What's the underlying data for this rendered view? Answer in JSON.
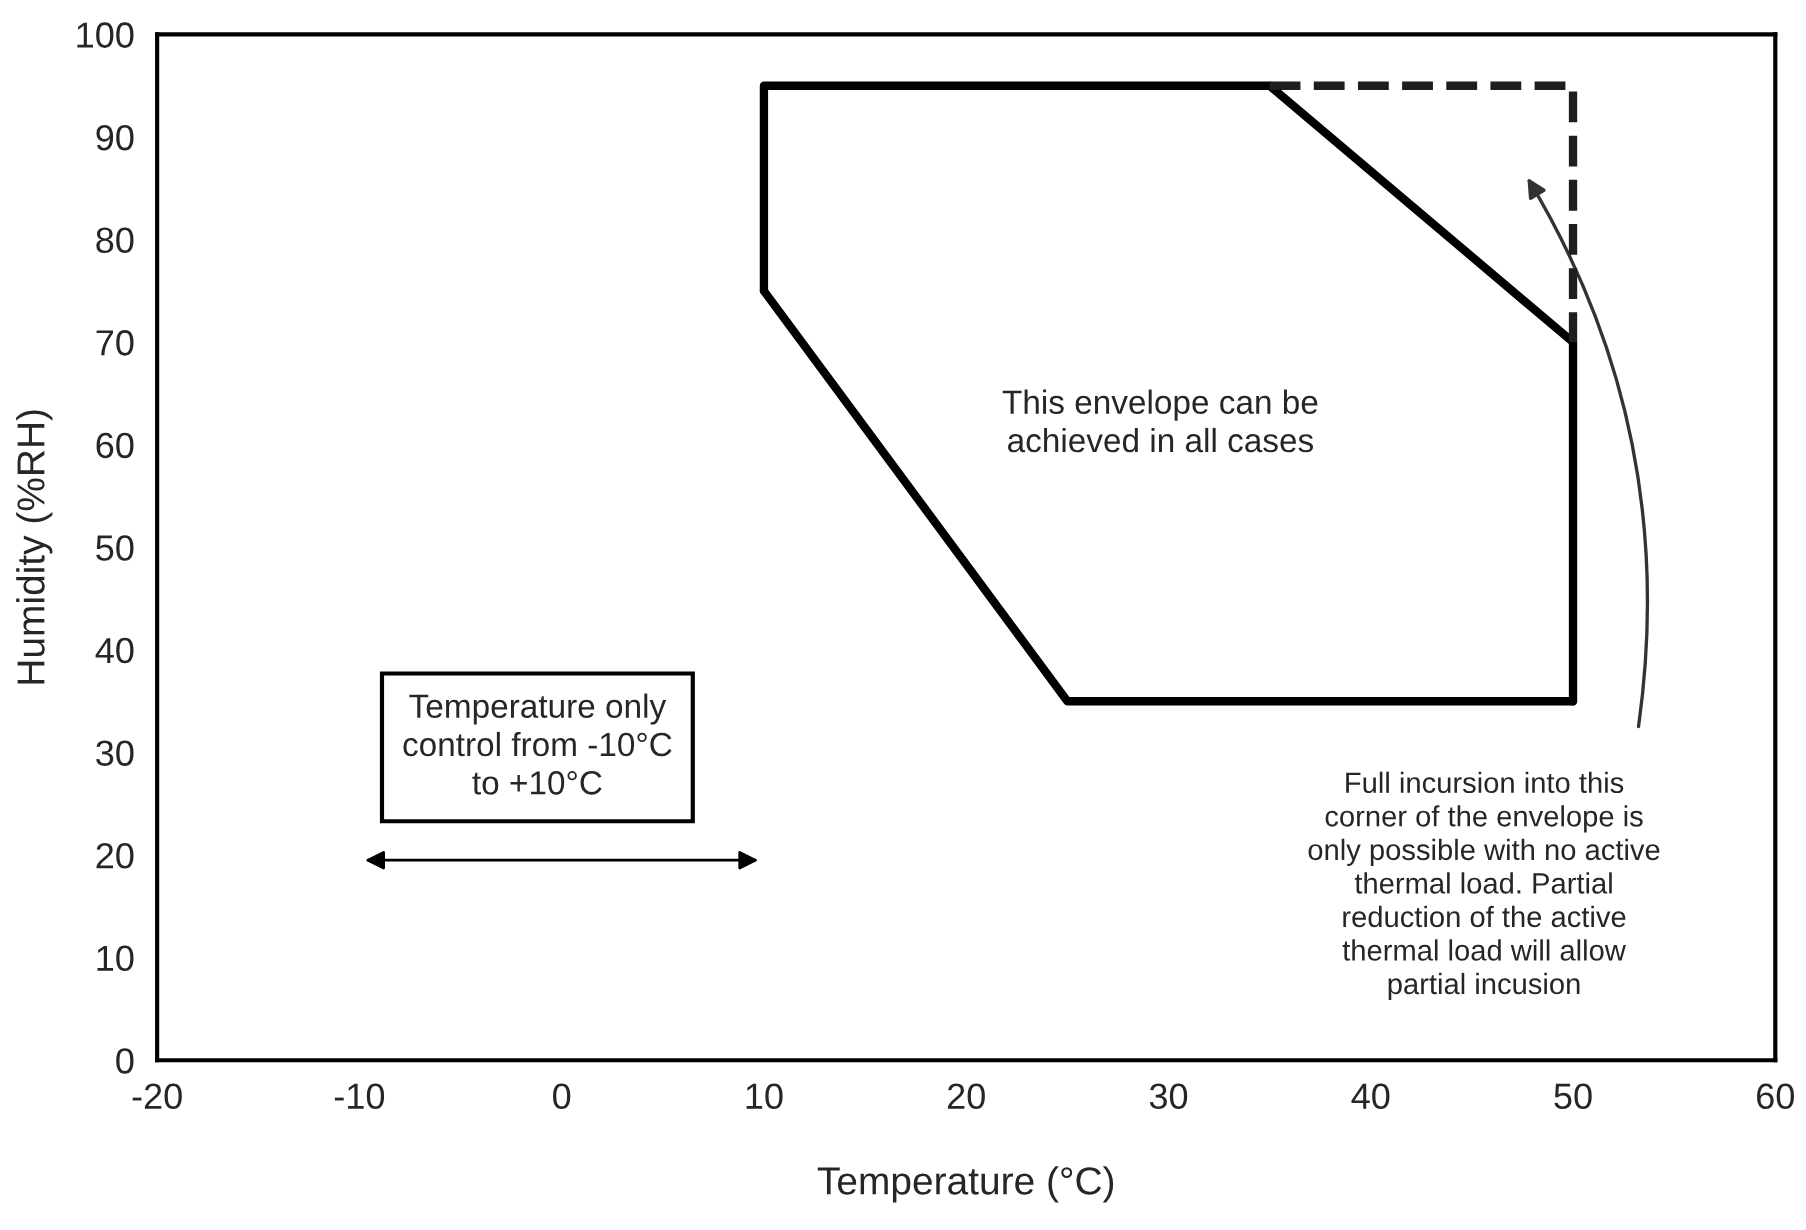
{
  "chart_data": {
    "type": "line",
    "xlabel": "Temperature (°C)",
    "ylabel": "Humidity (%RH)",
    "series": [
      {
        "color": "#000000",
        "x": [
          10,
          10,
          35,
          50,
          50
        ],
        "values": [
          75,
          95,
          95,
          70,
          35
        ],
        "line_style": "solid"
      },
      {
        "color": "#000000",
        "x": [
          50,
          25,
          10
        ],
        "values": [
          35,
          35,
          75
        ],
        "line_style": "solid"
      },
      {
        "color": "#1e1e1e",
        "x": [
          35,
          50,
          50
        ],
        "values": [
          95,
          95,
          70
        ],
        "line_style": "dashed"
      }
    ],
    "xlim": [
      -20,
      60
    ],
    "xticks": [
      -20,
      -10,
      0,
      10,
      20,
      30,
      40,
      50,
      60
    ],
    "ylim": [
      0,
      100
    ],
    "yticks": [
      0,
      10,
      20,
      30,
      40,
      50,
      60,
      70,
      80,
      90,
      100
    ],
    "grid": false,
    "legend": false,
    "marker": "none",
    "annotations": [
      "This envelope can be\nachieved in all cases",
      "Temperature only\ncontrol from -10°C\nto +10°C",
      "Full incursion into this\ncorner of the envelope is\nonly possible with no active\nthermal load. Partial\nreduction of the active\nthermal load will allow\npartial incusion"
    ]
  }
}
